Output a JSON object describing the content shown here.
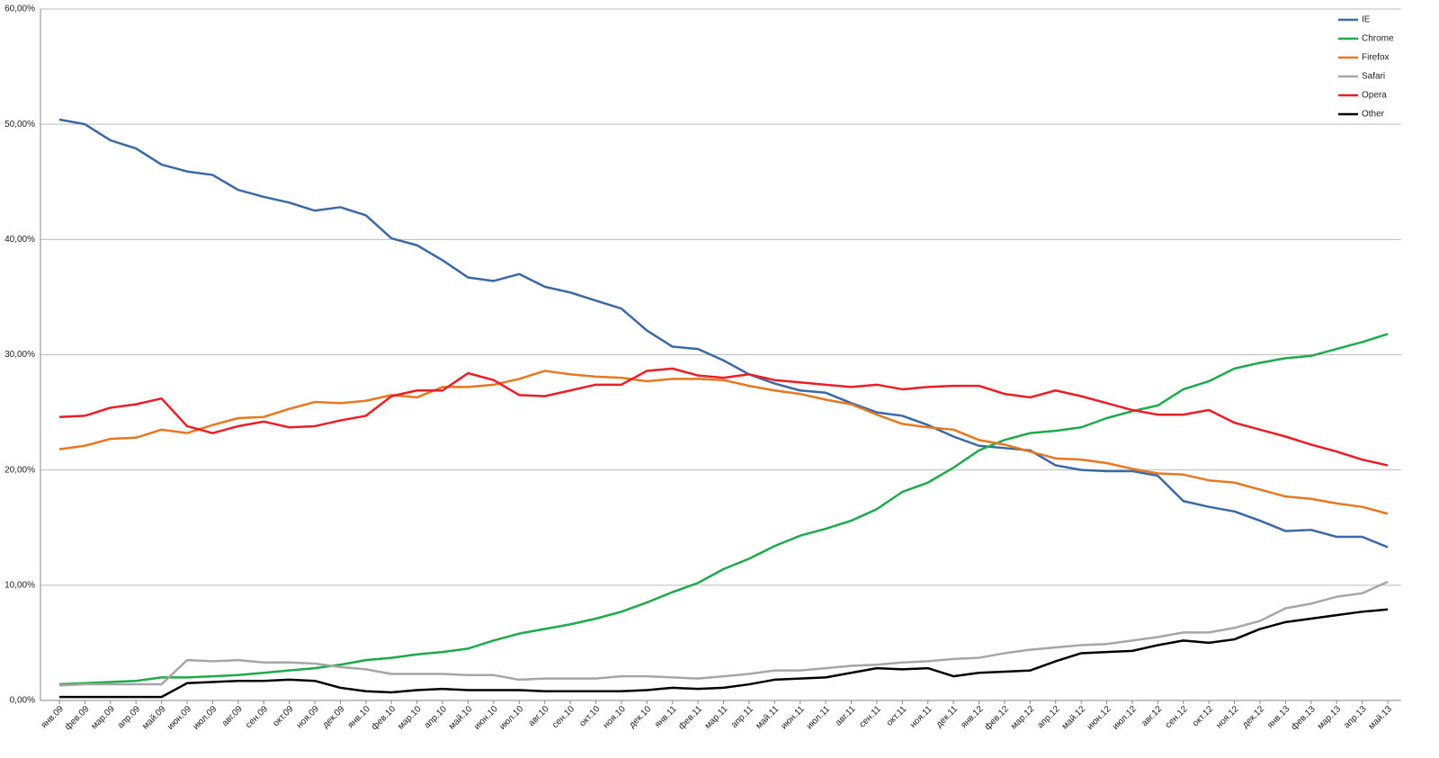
{
  "chart_data": {
    "type": "line",
    "categories": [
      "янв.09",
      "фев.09",
      "мар.09",
      "апр.09",
      "май.09",
      "июн.09",
      "июл.09",
      "авг.09",
      "сен.09",
      "окт.09",
      "ноя.09",
      "дек.09",
      "янв.10",
      "фев.10",
      "мар.10",
      "апр.10",
      "май.10",
      "июн.10",
      "июл.10",
      "авг.10",
      "сен.10",
      "окт.10",
      "ноя.10",
      "дек.10",
      "янв.11",
      "фев.11",
      "мар.11",
      "апр.11",
      "май.11",
      "июн.11",
      "июл.11",
      "авг.11",
      "сен.11",
      "окт.11",
      "ноя.11",
      "дек.11",
      "янв.12",
      "фев.12",
      "мар.12",
      "апр.12",
      "май.12",
      "июн.12",
      "июл.12",
      "авг.12",
      "сен.12",
      "окт.12",
      "ноя.12",
      "дек.12",
      "янв.13",
      "фев.13",
      "мар.13",
      "апр.13",
      "май.13"
    ],
    "series": [
      {
        "name": "IE",
        "color": "#3a69a6",
        "values": [
          50.4,
          50.0,
          48.6,
          47.9,
          46.5,
          45.9,
          45.6,
          44.3,
          43.7,
          43.2,
          42.5,
          42.8,
          42.1,
          40.1,
          39.5,
          38.2,
          36.7,
          36.4,
          37.0,
          35.9,
          35.4,
          34.7,
          34.0,
          32.1,
          30.7,
          30.5,
          29.5,
          28.3,
          27.5,
          26.9,
          26.7,
          25.8,
          25.0,
          24.7,
          23.9,
          22.9,
          22.1,
          21.9,
          21.7,
          20.4,
          20.0,
          19.9,
          19.9,
          19.5,
          17.3,
          16.8,
          16.4,
          15.6,
          14.7,
          14.8,
          14.2,
          14.2,
          13.3
        ]
      },
      {
        "name": "Chrome",
        "color": "#1daa4a",
        "values": [
          1.4,
          1.5,
          1.6,
          1.7,
          2.0,
          2.0,
          2.1,
          2.2,
          2.4,
          2.6,
          2.8,
          3.1,
          3.5,
          3.7,
          4.0,
          4.2,
          4.5,
          5.2,
          5.8,
          6.2,
          6.6,
          7.1,
          7.7,
          8.5,
          9.4,
          10.2,
          11.4,
          12.3,
          13.4,
          14.3,
          14.9,
          15.6,
          16.6,
          18.1,
          18.9,
          20.2,
          21.7,
          22.6,
          23.2,
          23.4,
          23.7,
          24.5,
          25.1,
          25.6,
          27.0,
          27.7,
          28.8,
          29.3,
          29.7,
          29.9,
          30.5,
          31.1,
          31.8
        ]
      },
      {
        "name": "Firefox",
        "color": "#e8771f",
        "values": [
          21.8,
          22.1,
          22.7,
          22.8,
          23.5,
          23.2,
          23.9,
          24.5,
          24.6,
          25.3,
          25.9,
          25.8,
          26.0,
          26.5,
          26.3,
          27.2,
          27.2,
          27.4,
          27.9,
          28.6,
          28.3,
          28.1,
          28.0,
          27.7,
          27.9,
          27.9,
          27.8,
          27.3,
          26.9,
          26.6,
          26.1,
          25.7,
          24.8,
          24.0,
          23.7,
          23.5,
          22.6,
          22.2,
          21.6,
          21.0,
          20.9,
          20.6,
          20.1,
          19.7,
          19.6,
          19.1,
          18.9,
          18.3,
          17.7,
          17.5,
          17.1,
          16.8,
          16.2
        ]
      },
      {
        "name": "Safari",
        "color": "#a6a6a6",
        "values": [
          1.3,
          1.4,
          1.4,
          1.4,
          1.4,
          3.5,
          3.4,
          3.5,
          3.3,
          3.3,
          3.2,
          2.9,
          2.7,
          2.3,
          2.3,
          2.3,
          2.2,
          2.2,
          1.8,
          1.9,
          1.9,
          1.9,
          2.1,
          2.1,
          2.0,
          1.9,
          2.1,
          2.3,
          2.6,
          2.6,
          2.8,
          3.0,
          3.1,
          3.3,
          3.4,
          3.6,
          3.7,
          4.1,
          4.4,
          4.6,
          4.8,
          4.9,
          5.2,
          5.5,
          5.9,
          5.9,
          6.3,
          6.9,
          8.0,
          8.4,
          9.0,
          9.3,
          10.3
        ]
      },
      {
        "name": "Opera",
        "color": "#ee1c24",
        "values": [
          24.6,
          24.7,
          25.4,
          25.7,
          26.2,
          23.8,
          23.2,
          23.8,
          24.2,
          23.7,
          23.8,
          24.3,
          24.7,
          26.4,
          26.9,
          26.9,
          28.4,
          27.8,
          26.5,
          26.4,
          26.9,
          27.4,
          27.4,
          28.6,
          28.8,
          28.2,
          28.0,
          28.3,
          27.8,
          27.6,
          27.4,
          27.2,
          27.4,
          27.0,
          27.2,
          27.3,
          27.3,
          26.6,
          26.3,
          26.9,
          26.4,
          25.8,
          25.2,
          24.8,
          24.8,
          25.2,
          24.1,
          23.5,
          22.9,
          22.2,
          21.6,
          20.9,
          20.4
        ]
      },
      {
        "name": "Other",
        "color": "#000000",
        "values": [
          0.3,
          0.3,
          0.3,
          0.3,
          0.3,
          1.5,
          1.6,
          1.7,
          1.7,
          1.8,
          1.7,
          1.1,
          0.8,
          0.7,
          0.9,
          1.0,
          0.9,
          0.9,
          0.9,
          0.8,
          0.8,
          0.8,
          0.8,
          0.9,
          1.1,
          1.0,
          1.1,
          1.4,
          1.8,
          1.9,
          2.0,
          2.4,
          2.8,
          2.7,
          2.8,
          2.1,
          2.4,
          2.5,
          2.6,
          3.4,
          4.1,
          4.2,
          4.3,
          4.8,
          5.2,
          5.0,
          5.3,
          6.2,
          6.8,
          7.1,
          7.4,
          7.7,
          7.9
        ]
      }
    ],
    "ylim": [
      0,
      60
    ],
    "yticks": [
      {
        "value": 0,
        "label": "0,00%"
      },
      {
        "value": 10,
        "label": "10,00%"
      },
      {
        "value": 20,
        "label": "20,00%"
      },
      {
        "value": 30,
        "label": "30,00%"
      },
      {
        "value": 40,
        "label": "40,00%"
      },
      {
        "value": 50,
        "label": "50,00%"
      },
      {
        "value": 60,
        "label": "60,00%"
      }
    ],
    "grid": true,
    "legend": "top-right"
  }
}
